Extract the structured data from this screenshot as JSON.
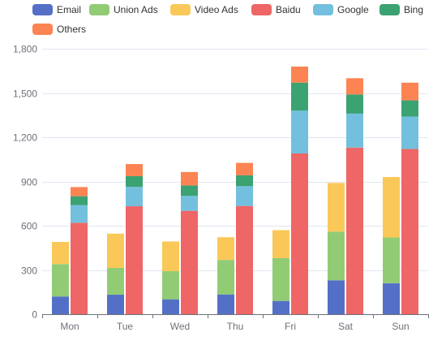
{
  "chart_data": {
    "type": "bar",
    "stacked": true,
    "categories": [
      "Mon",
      "Tue",
      "Wed",
      "Thu",
      "Fri",
      "Sat",
      "Sun"
    ],
    "ylim": [
      0,
      1800
    ],
    "yticks": [
      0,
      300,
      600,
      900,
      1200,
      1500,
      1800
    ],
    "ytick_labels": [
      "0",
      "300",
      "600",
      "900",
      "1,200",
      "1,500",
      "1,800"
    ],
    "grid": true,
    "legend_position": "top",
    "stacks": [
      {
        "stack": "left",
        "series": [
          {
            "name": "Email",
            "color": "#5470C6",
            "values": [
              120,
              132,
              101,
              134,
              90,
              230,
              210
            ]
          },
          {
            "name": "Union Ads",
            "color": "#91CC75",
            "values": [
              220,
              182,
              191,
              234,
              290,
              330,
              310
            ]
          },
          {
            "name": "Video Ads",
            "color": "#FAC858",
            "values": [
              150,
              232,
              201,
              154,
              190,
              330,
              410
            ]
          }
        ]
      },
      {
        "stack": "right",
        "series": [
          {
            "name": "Baidu",
            "color": "#EE6666",
            "values": [
              620,
              732,
              701,
              734,
              1090,
              1130,
              1120
            ]
          },
          {
            "name": "Google",
            "color": "#73C0DE",
            "values": [
              120,
              132,
              101,
              134,
              290,
              230,
              220
            ]
          },
          {
            "name": "Bing",
            "color": "#3BA272",
            "values": [
              60,
              72,
              71,
              74,
              190,
              130,
              110
            ]
          },
          {
            "name": "Others",
            "color": "#FC8452",
            "values": [
              62,
              82,
              91,
              84,
              109,
              110,
              120
            ]
          }
        ]
      }
    ],
    "legend": [
      {
        "name": "Email",
        "color": "#5470C6"
      },
      {
        "name": "Union Ads",
        "color": "#91CC75"
      },
      {
        "name": "Video Ads",
        "color": "#FAC858"
      },
      {
        "name": "Baidu",
        "color": "#EE6666"
      },
      {
        "name": "Google",
        "color": "#73C0DE"
      },
      {
        "name": "Bing",
        "color": "#3BA272"
      },
      {
        "name": "Others",
        "color": "#FC8452"
      }
    ]
  }
}
